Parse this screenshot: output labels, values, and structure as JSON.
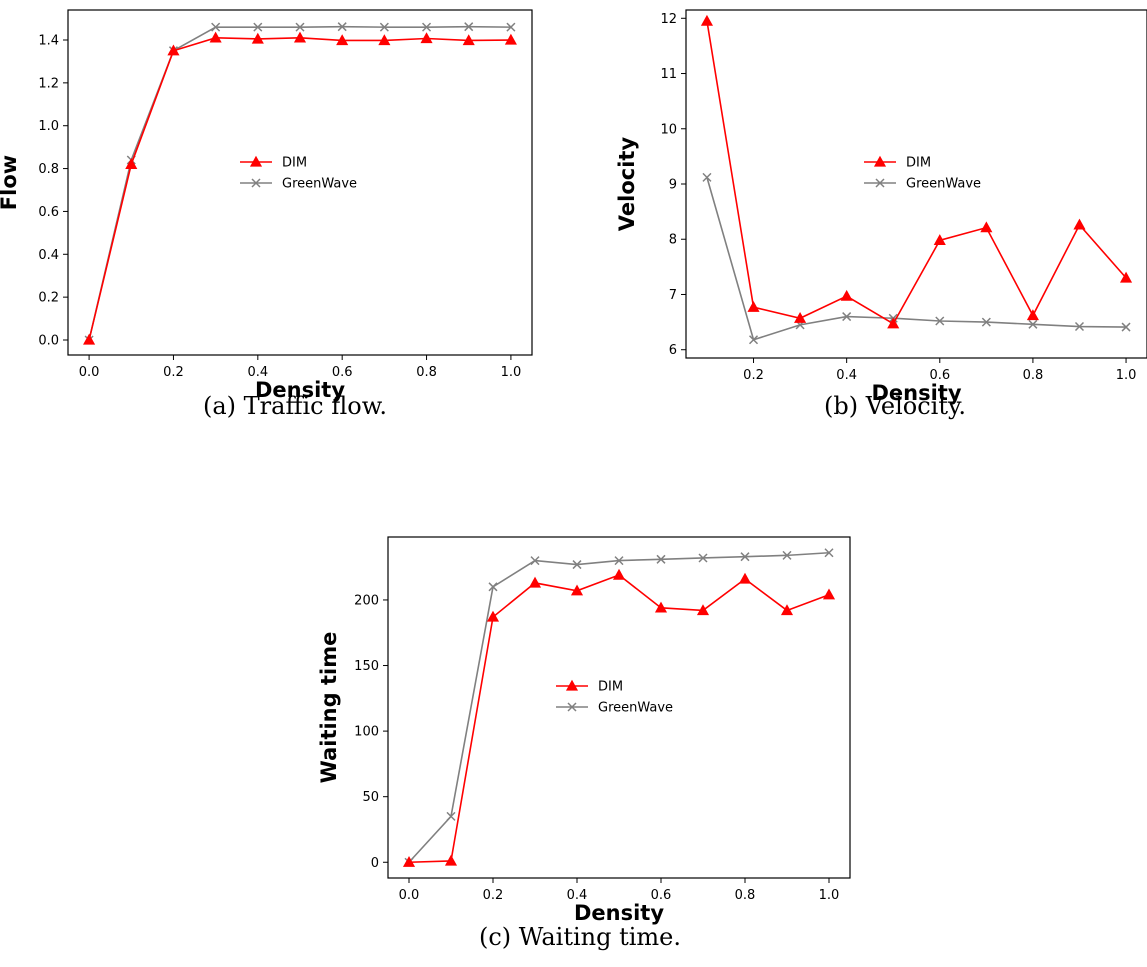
{
  "colors": {
    "DIM": "#ff0000",
    "GreenWave": "#808080",
    "axis": "#000000"
  },
  "chart_data": [
    {
      "type": "line",
      "ylabel": "Flow",
      "xlabel": "Density",
      "caption": "(a) Traffic flow.",
      "xlim": [
        -0.05,
        1.05
      ],
      "ylim": [
        -0.07,
        1.54
      ],
      "xticks": [
        "0.0",
        "0.2",
        "0.4",
        "0.6",
        "0.8",
        "1.0"
      ],
      "xtick_values": [
        0,
        0.2,
        0.4,
        0.6,
        0.8,
        1.0
      ],
      "yticks": [
        "0.0",
        "0.2",
        "0.4",
        "0.6",
        "0.8",
        "1.0",
        "1.2",
        "1.4"
      ],
      "ytick_values": [
        0,
        0.2,
        0.4,
        0.6,
        0.8,
        1.0,
        1.2,
        1.4
      ],
      "grid": false,
      "legend_position": "center",
      "x": [
        0.0,
        0.1,
        0.2,
        0.3,
        0.4,
        0.5,
        0.6,
        0.7,
        0.8,
        0.9,
        1.0
      ],
      "series": [
        {
          "name": "DIM",
          "marker": "triangle",
          "values": [
            0.0,
            0.82,
            1.35,
            1.41,
            1.405,
            1.41,
            1.398,
            1.398,
            1.407,
            1.398,
            1.4
          ]
        },
        {
          "name": "GreenWave",
          "marker": "x",
          "values": [
            0.0,
            0.84,
            1.35,
            1.46,
            1.46,
            1.46,
            1.462,
            1.46,
            1.46,
            1.462,
            1.46
          ]
        }
      ]
    },
    {
      "type": "line",
      "ylabel": "Velocity",
      "xlabel": "Density",
      "caption": "(b) Velocity.",
      "xlim": [
        0.055,
        1.045
      ],
      "ylim": [
        5.85,
        12.15
      ],
      "xticks": [
        "0.2",
        "0.4",
        "0.6",
        "0.8",
        "1.0"
      ],
      "xtick_values": [
        0.2,
        0.4,
        0.6,
        0.8,
        1.0
      ],
      "yticks": [
        "6",
        "7",
        "8",
        "9",
        "10",
        "11",
        "12"
      ],
      "ytick_values": [
        6,
        7,
        8,
        9,
        10,
        11,
        12
      ],
      "grid": false,
      "legend_position": "center",
      "x": [
        0.1,
        0.2,
        0.3,
        0.4,
        0.5,
        0.6,
        0.7,
        0.8,
        0.9,
        1.0
      ],
      "series": [
        {
          "name": "DIM",
          "marker": "triangle",
          "values": [
            11.95,
            6.77,
            6.57,
            6.97,
            6.47,
            7.98,
            8.21,
            6.62,
            8.26,
            7.3
          ]
        },
        {
          "name": "GreenWave",
          "marker": "x",
          "values": [
            9.12,
            6.18,
            6.45,
            6.6,
            6.57,
            6.52,
            6.5,
            6.46,
            6.42,
            6.41
          ]
        }
      ]
    },
    {
      "type": "line",
      "ylabel": "Waiting time",
      "xlabel": "Density",
      "caption": "(c) Waiting time.",
      "xlim": [
        -0.05,
        1.05
      ],
      "ylim": [
        -12,
        248
      ],
      "xticks": [
        "0.0",
        "0.2",
        "0.4",
        "0.6",
        "0.8",
        "1.0"
      ],
      "xtick_values": [
        0,
        0.2,
        0.4,
        0.6,
        0.8,
        1.0
      ],
      "yticks": [
        "0",
        "50",
        "100",
        "150",
        "200"
      ],
      "ytick_values": [
        0,
        50,
        100,
        150,
        200
      ],
      "grid": false,
      "legend_position": "center",
      "x": [
        0.0,
        0.1,
        0.2,
        0.3,
        0.4,
        0.5,
        0.6,
        0.7,
        0.8,
        0.9,
        1.0
      ],
      "series": [
        {
          "name": "DIM",
          "marker": "triangle",
          "values": [
            0,
            1,
            187,
            213,
            207,
            219,
            194,
            192,
            216,
            192,
            204
          ]
        },
        {
          "name": "GreenWave",
          "marker": "x",
          "values": [
            0,
            35,
            210,
            230,
            227,
            230,
            231,
            232,
            233,
            234,
            236
          ]
        }
      ]
    }
  ]
}
